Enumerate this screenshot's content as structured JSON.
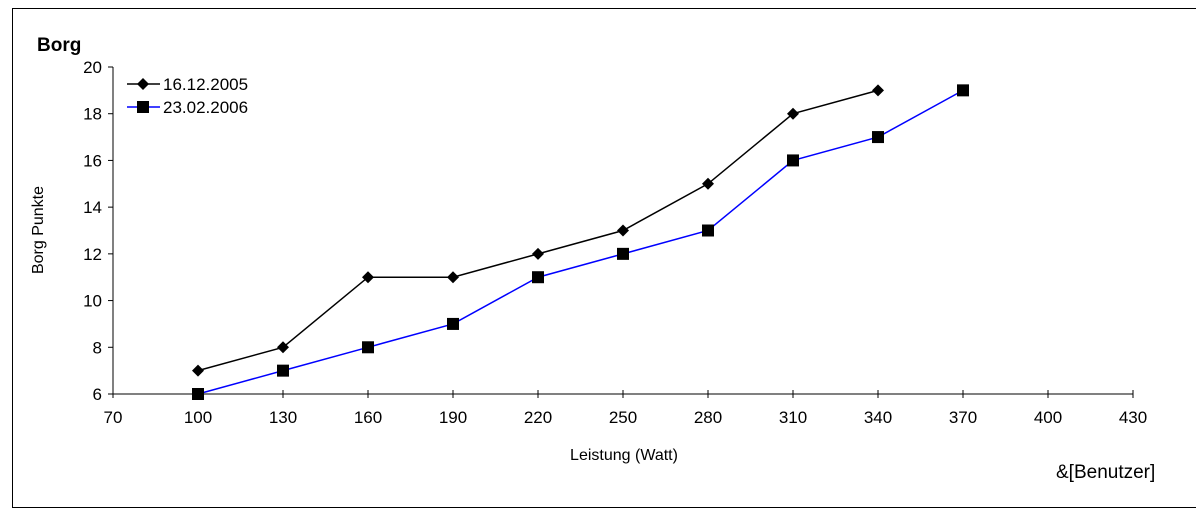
{
  "chart_data": {
    "type": "line",
    "title": "Borg",
    "xlabel": "Leistung (Watt)",
    "ylabel": "Borg Punkte",
    "xlim": [
      70,
      430
    ],
    "ylim": [
      6,
      20
    ],
    "x_ticks": [
      "70",
      "100",
      "130",
      "160",
      "190",
      "220",
      "250",
      "280",
      "310",
      "340",
      "370",
      "400",
      "430"
    ],
    "y_ticks": [
      "6",
      "8",
      "10",
      "12",
      "14",
      "16",
      "18",
      "20"
    ],
    "legend_position": "top-left",
    "grid": false,
    "series": [
      {
        "name": "16.12.2005",
        "color": "#000000",
        "marker": "diamond",
        "x": [
          100,
          130,
          160,
          190,
          220,
          250,
          280,
          310,
          340
        ],
        "values": [
          7,
          8,
          11,
          11,
          12,
          13,
          15,
          18,
          19
        ]
      },
      {
        "name": "23.02.2006",
        "color": "#0000ff",
        "marker": "square",
        "x": [
          100,
          130,
          160,
          190,
          220,
          250,
          280,
          310,
          340,
          370
        ],
        "values": [
          6,
          7,
          8,
          9,
          11,
          12,
          13,
          16,
          17,
          19
        ]
      }
    ]
  },
  "footer": "&[Benutzer]"
}
